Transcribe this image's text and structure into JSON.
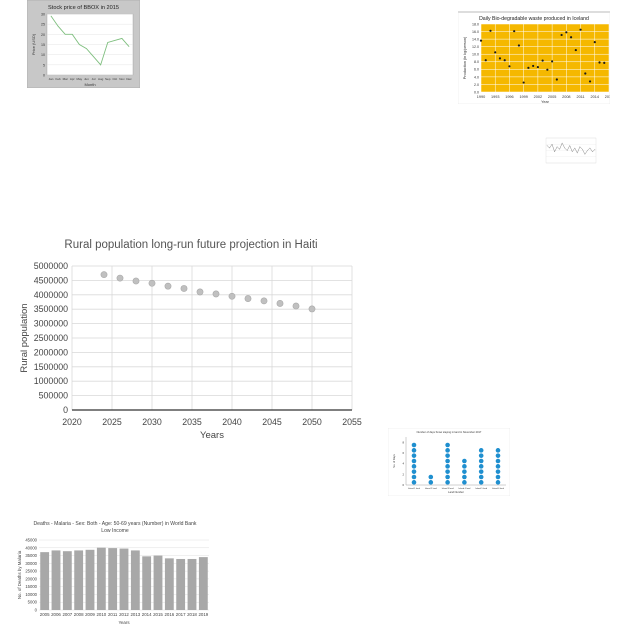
{
  "charts": [
    {
      "id": "stock",
      "chart_data": {
        "type": "line",
        "title": "Stock price of BBOX in 2015",
        "xlabel": "Month",
        "ylabel": "Price (USD)",
        "categories": [
          "Jan",
          "Feb",
          "Mar",
          "Apr",
          "May",
          "Jun",
          "Jul",
          "Aug",
          "Sep",
          "Oct",
          "Nov",
          "Dec"
        ],
        "series": [
          {
            "values": [
              29,
              24,
              20,
              20,
              15,
              13,
              9,
              5,
              16,
              17,
              18,
              14
            ]
          }
        ],
        "yticks": [
          0,
          5,
          10,
          15,
          20,
          25,
          30
        ],
        "ylim": [
          0,
          30
        ],
        "grid": true,
        "legend": "none",
        "colors": {
          "background": "#c8c8c8",
          "plot": "#ffffff",
          "line": "#7fbf7f"
        }
      }
    },
    {
      "id": "biowaste",
      "chart_data": {
        "type": "scatter",
        "title": "Daily Bio-degradable waste produced in Iceland",
        "xlabel": "Year",
        "ylabel": "Production (in kg/person)",
        "x": [
          1990,
          1991,
          1992,
          1993,
          1994,
          1995,
          1996,
          1997,
          1998,
          1999,
          2000,
          2001,
          2002,
          2003,
          2004,
          2005,
          2006,
          2007,
          2008,
          2009,
          2010,
          2011,
          2012,
          2013,
          2014,
          2015,
          2016
        ],
        "y": [
          13.6,
          8.4,
          16.2,
          10.5,
          8.9,
          8.4,
          6.8,
          16.1,
          12.3,
          2.5,
          6.4,
          6.9,
          6.6,
          8.3,
          5.9,
          8.1,
          3.3,
          15.1,
          15.8,
          14.5,
          11.1,
          16.5,
          4.9,
          2.8,
          13.2,
          7.8,
          7.7
        ],
        "xticks": [
          1990,
          1993,
          1996,
          1999,
          2002,
          2005,
          2008,
          2011,
          2014,
          2017
        ],
        "yticks": [
          0,
          2.0,
          4.0,
          6.0,
          8.0,
          10.0,
          12.0,
          14.0,
          16.0,
          18.0
        ],
        "ylim": [
          0,
          18
        ],
        "grid": true,
        "legend": "none",
        "colors": {
          "plot": "#f5b800",
          "marker": "#1a1a1a"
        }
      }
    },
    {
      "id": "tiny",
      "chart_data": {
        "type": "line",
        "title": "",
        "x": [
          1,
          2,
          3,
          4,
          5,
          6,
          7,
          8,
          9,
          10,
          11,
          12,
          13,
          14,
          15,
          16,
          17,
          18,
          19,
          20
        ],
        "values": [
          14,
          12,
          15,
          9,
          13,
          11,
          16,
          12,
          10,
          14,
          9,
          12,
          8,
          13,
          11,
          7,
          10,
          12,
          9,
          11
        ],
        "ylim": [
          0,
          20
        ],
        "grid": true,
        "legend": "none",
        "colors": {
          "line": "#888888"
        }
      }
    },
    {
      "id": "haiti",
      "chart_data": {
        "type": "scatter",
        "title": "Rural population long-run future projection in Haiti",
        "xlabel": "Years",
        "ylabel": "Rural population",
        "x": [
          2024,
          2026,
          2028,
          2030,
          2032,
          2034,
          2036,
          2038,
          2040,
          2042,
          2044,
          2046,
          2048,
          2050
        ],
        "y": [
          4700000,
          4580000,
          4480000,
          4400000,
          4300000,
          4220000,
          4100000,
          4030000,
          3950000,
          3870000,
          3790000,
          3700000,
          3610000,
          3510000
        ],
        "xticks": [
          2020,
          2025,
          2030,
          2035,
          2040,
          2045,
          2050,
          2055
        ],
        "yticks": [
          0,
          500000,
          1000000,
          1500000,
          2000000,
          2500000,
          3000000,
          3500000,
          4000000,
          4500000,
          5000000
        ],
        "xlim": [
          2020,
          2055
        ],
        "ylim": [
          0,
          5000000
        ],
        "grid": true,
        "legend": "none",
        "colors": {
          "marker": "#c0c0c0",
          "marker_edge": "#a8a8a8"
        }
      }
    },
    {
      "id": "snow",
      "chart_data": {
        "type": "bar",
        "title": "Number of days Snow staying in land in November 2017",
        "xlabel": "Land Number",
        "ylabel": "No. of Days",
        "categories": [
          "Island 1 land",
          "Island 2 land",
          "Island 3 land",
          "Island 4 land",
          "Island 5 land",
          "Island 6 land"
        ],
        "values": [
          8,
          2,
          8,
          5,
          7,
          7
        ],
        "yticks": [
          0,
          2,
          4,
          6,
          8
        ],
        "ylim": [
          0,
          9
        ],
        "grid": false,
        "legend": "none",
        "colors": {
          "marker": "#1f8fcf"
        }
      }
    },
    {
      "id": "malaria",
      "chart_data": {
        "type": "bar",
        "title": "Deaths - Malaria - Sex: Both - Age: 50-69 years (Number) in World Bank Low Income",
        "xlabel": "Years",
        "ylabel": "No. of Deaths by Malaria",
        "categories": [
          "2005",
          "2006",
          "2007",
          "2008",
          "2009",
          "2010",
          "2011",
          "2012",
          "2013",
          "2014",
          "2015",
          "2016",
          "2017",
          "2018",
          "2019"
        ],
        "values": [
          37200,
          38300,
          37800,
          38300,
          38700,
          40100,
          39800,
          39500,
          38300,
          34500,
          35000,
          33200,
          32800,
          32800,
          34000
        ],
        "yticks": [
          0,
          5000,
          10000,
          15000,
          20000,
          25000,
          30000,
          35000,
          40000,
          45000
        ],
        "ylim": [
          0,
          45000
        ],
        "grid": true,
        "legend": "none",
        "colors": {
          "bar": "#a8a8a8"
        }
      }
    }
  ]
}
